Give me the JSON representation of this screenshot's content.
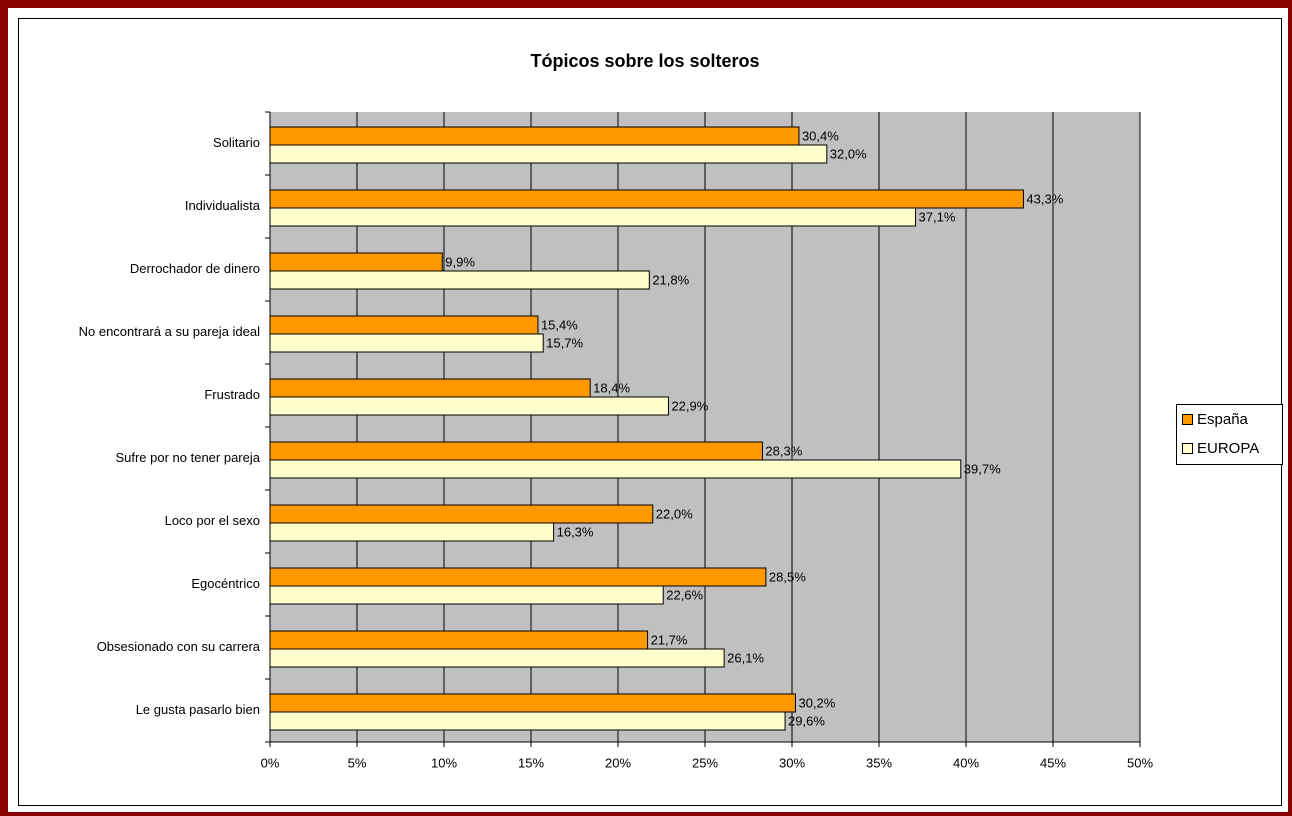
{
  "chart_data": {
    "type": "bar",
    "orientation": "horizontal",
    "title": "Tópicos sobre los solteros",
    "categories": [
      "Solitario",
      "Individualista",
      "Derrochador de dinero",
      "No encontrará a su pareja ideal",
      "Frustrado",
      "Sufre por no tener pareja",
      "Loco por el sexo",
      "Egocéntrico",
      "Obsesionado con su carrera",
      "Le gusta pasarlo bien"
    ],
    "series": [
      {
        "name": "España",
        "color": "#ff9900",
        "values": [
          30.4,
          43.3,
          9.9,
          15.4,
          18.4,
          28.3,
          22.0,
          28.5,
          21.7,
          30.2
        ],
        "value_labels": [
          "30,4%",
          "43,3%",
          "9,9%",
          "15,4%",
          "18,4%",
          "28,3%",
          "22,0%",
          "28,5%",
          "21,7%",
          "30,2%"
        ]
      },
      {
        "name": "EUROPA",
        "color": "#ffffcc",
        "values": [
          32.0,
          37.1,
          21.8,
          15.7,
          22.9,
          39.7,
          16.3,
          22.6,
          26.1,
          29.6
        ],
        "value_labels": [
          "32,0%",
          "37,1%",
          "21,8%",
          "15,7%",
          "22,9%",
          "39,7%",
          "16,3%",
          "22,6%",
          "26,1%",
          "29,6%"
        ]
      }
    ],
    "xlim": [
      0,
      50
    ],
    "xticks": [
      {
        "value": 0,
        "label": "0%"
      },
      {
        "value": 5,
        "label": "5%"
      },
      {
        "value": 10,
        "label": "10%"
      },
      {
        "value": 15,
        "label": "15%"
      },
      {
        "value": 20,
        "label": "20%"
      },
      {
        "value": 25,
        "label": "25%"
      },
      {
        "value": 30,
        "label": "30%"
      },
      {
        "value": 35,
        "label": "35%"
      },
      {
        "value": 40,
        "label": "40%"
      },
      {
        "value": 45,
        "label": "45%"
      },
      {
        "value": 50,
        "label": "50%"
      }
    ],
    "grid": true,
    "legend_position": "right",
    "plot_background": "#c0c0c0"
  }
}
